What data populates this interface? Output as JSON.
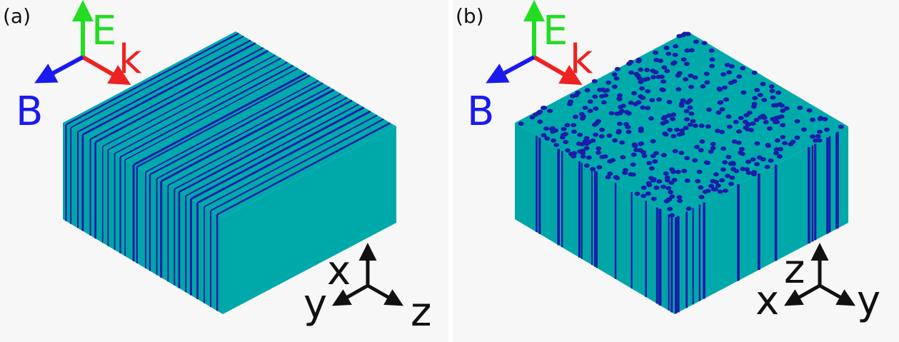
{
  "panels": [
    {
      "label": "(a)",
      "field_axes": {
        "E": "E",
        "k": "k",
        "B": "B"
      },
      "coord_axes": {
        "x": "x",
        "y": "y",
        "z": "z"
      }
    },
    {
      "label": "(b)",
      "field_axes": {
        "E": "E",
        "k": "k",
        "B": "B"
      },
      "coord_axes": {
        "x": "x",
        "y": "y",
        "z": "z"
      }
    }
  ]
}
